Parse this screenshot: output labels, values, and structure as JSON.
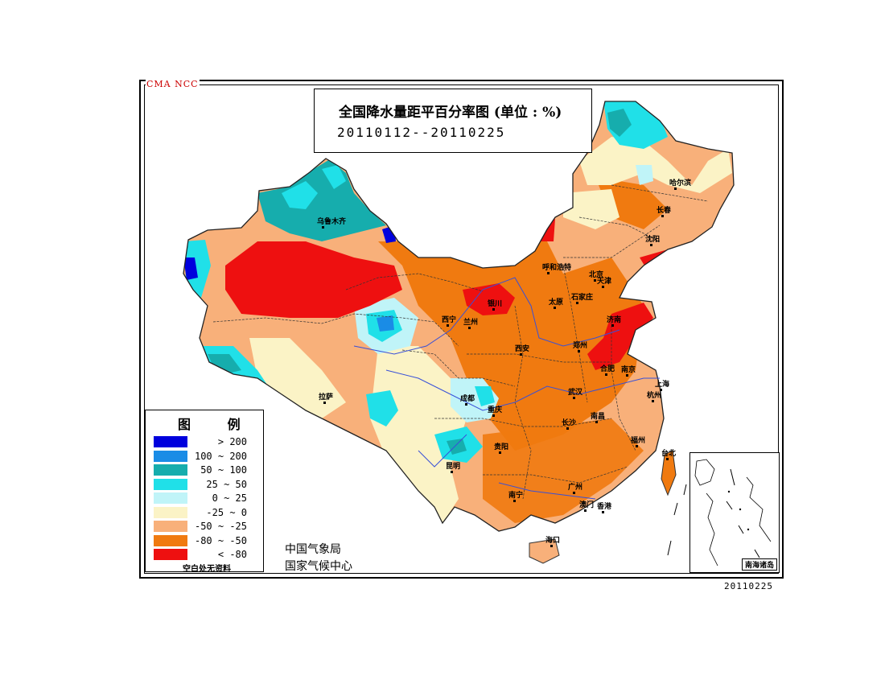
{
  "header_tag": "CMA  NCC",
  "title": {
    "main": "全国降水量距平百分率图 (单位 : %)",
    "period": "20110112--20110225"
  },
  "legend": {
    "title": "图 例",
    "items": [
      {
        "label": "> 200",
        "color": "#0000dd"
      },
      {
        "label": "100 ~ 200",
        "color": "#1a8ce6"
      },
      {
        "label": "50 ~ 100",
        "color": "#16adad"
      },
      {
        "label": "25 ~ 50",
        "color": "#20e0e8"
      },
      {
        "label": "0 ~ 25",
        "color": "#c0f4f8"
      },
      {
        "label": "-25 ~ 0",
        "color": "#fbf3c6"
      },
      {
        "label": "-50 ~ -25",
        "color": "#f8b07a"
      },
      {
        "label": "-80 ~ -50",
        "color": "#f07a10"
      },
      {
        "label": "< -80",
        "color": "#ee1010"
      }
    ],
    "note": "空白处无资料"
  },
  "organization": {
    "line1": "中国气象局",
    "line2": "国家气候中心"
  },
  "footer_date": "20110225",
  "inset_label": "南海诸岛",
  "cities": [
    {
      "name": "乌鲁木齐"
    },
    {
      "name": "哈尔滨"
    },
    {
      "name": "长春"
    },
    {
      "name": "沈阳"
    },
    {
      "name": "呼和浩特"
    },
    {
      "name": "北京"
    },
    {
      "name": "天津"
    },
    {
      "name": "太原"
    },
    {
      "name": "石家庄"
    },
    {
      "name": "银川"
    },
    {
      "name": "西宁"
    },
    {
      "name": "兰州"
    },
    {
      "name": "济南"
    },
    {
      "name": "西安"
    },
    {
      "name": "郑州"
    },
    {
      "name": "合肥"
    },
    {
      "name": "南京"
    },
    {
      "name": "上海"
    },
    {
      "name": "拉萨"
    },
    {
      "name": "成都"
    },
    {
      "name": "重庆"
    },
    {
      "name": "武汉"
    },
    {
      "name": "杭州"
    },
    {
      "name": "长沙"
    },
    {
      "name": "南昌"
    },
    {
      "name": "贵阳"
    },
    {
      "name": "福州"
    },
    {
      "name": "昆明"
    },
    {
      "name": "台北"
    },
    {
      "name": "南宁"
    },
    {
      "name": "广州"
    },
    {
      "name": "澳门"
    },
    {
      "name": "香港"
    },
    {
      "name": "海口"
    }
  ]
}
